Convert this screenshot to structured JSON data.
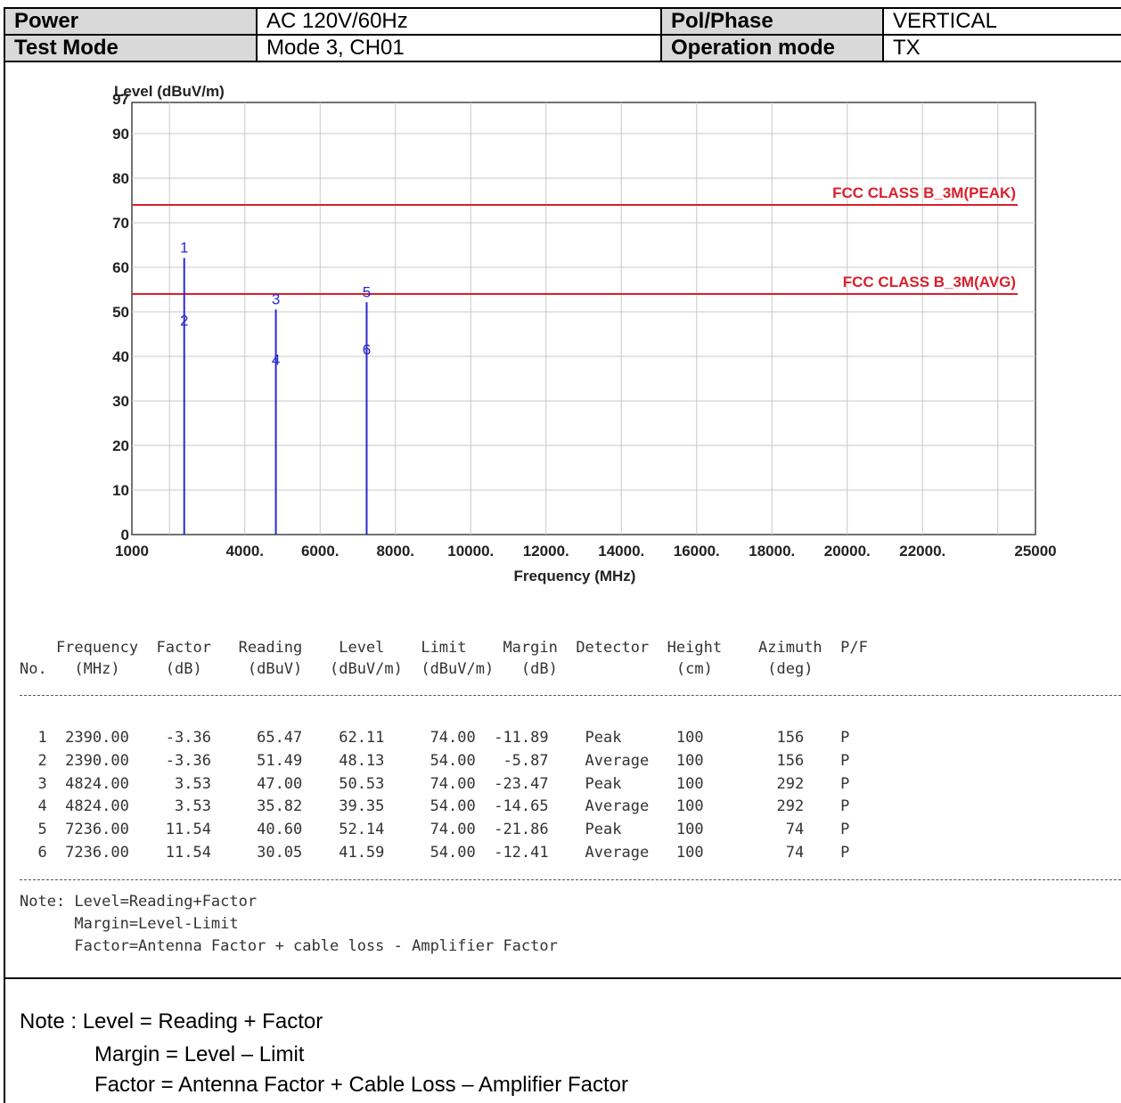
{
  "header": {
    "rows": [
      {
        "label1": "Power",
        "value1": "AC 120V/60Hz",
        "label2": "Pol/Phase",
        "value2": "VERTICAL"
      },
      {
        "label1": "Test Mode",
        "value1": "Mode 3, CH01",
        "label2": "Operation mode",
        "value2": "TX"
      }
    ]
  },
  "chart_data": {
    "type": "line",
    "ylabel": "Level (dBuV/m)",
    "xlabel": "Frequency (MHz)",
    "ylim": [
      0,
      97
    ],
    "xlim": [
      1000,
      25000
    ],
    "x_ticks": [
      "1000",
      "4000.",
      "6000.",
      "8000.",
      "10000.",
      "12000.",
      "14000.",
      "16000.",
      "18000.",
      "20000.",
      "22000.",
      "25000"
    ],
    "x_tick_values": [
      1000,
      4000,
      6000,
      8000,
      10000,
      12000,
      14000,
      16000,
      18000,
      20000,
      22000,
      25000
    ],
    "y_ticks": [
      "0",
      "10",
      "20",
      "30",
      "40",
      "50",
      "60",
      "70",
      "80",
      "90",
      "97"
    ],
    "y_tick_values": [
      0,
      10,
      20,
      30,
      40,
      50,
      60,
      70,
      80,
      90,
      97
    ],
    "grid": true,
    "limits": [
      {
        "name": "FCC CLASS B_3M(PEAK)",
        "value": 74,
        "color": "#d8202c"
      },
      {
        "name": "FCC CLASS B_3M(AVG)",
        "value": 54,
        "color": "#d8202c"
      }
    ],
    "markers": [
      {
        "label": "1",
        "x": 2390,
        "y": 62.11
      },
      {
        "label": "2",
        "x": 2390,
        "y": 48.13
      },
      {
        "label": "3",
        "x": 4824,
        "y": 50.53
      },
      {
        "label": "4",
        "x": 4824,
        "y": 39.35
      },
      {
        "label": "5",
        "x": 7236,
        "y": 52.14
      },
      {
        "label": "6",
        "x": 7236,
        "y": 41.59
      }
    ],
    "marker_color": "#2a2ad0"
  },
  "table": {
    "header_line1": "    Frequency  Factor   Reading    Level    Limit    Margin  Detector  Height    Azimuth  P/F",
    "header_line2": "No.   (MHz)     (dB)     (dBuV)   (dBuV/m)  (dBuV/m)   (dB)             (cm)      (deg)",
    "rows": [
      "  1  2390.00    -3.36     65.47    62.11     74.00  -11.89    Peak      100        156    P",
      "  2  2390.00    -3.36     51.49    48.13     54.00   -5.87    Average   100        156    P",
      "  3  4824.00     3.53     47.00    50.53     74.00  -23.47    Peak      100        292    P",
      "  4  4824.00     3.53     35.82    39.35     54.00  -14.65    Average   100        292    P",
      "  5  7236.00    11.54     40.60    52.14     74.00  -21.86    Peak      100         74    P",
      "  6  7236.00    11.54     30.05    41.59     54.00  -12.41    Average   100         74    P"
    ],
    "note_lines": [
      "Note: Level=Reading+Factor",
      "      Margin=Level-Limit",
      "      Factor=Antenna Factor + cable loss - Amplifier Factor"
    ]
  },
  "bottom_note": {
    "line1": "Note : Level = Reading + Factor",
    "line2": "Margin = Level – Limit",
    "line3": "Factor = Antenna Factor + Cable Loss – Amplifier Factor"
  }
}
